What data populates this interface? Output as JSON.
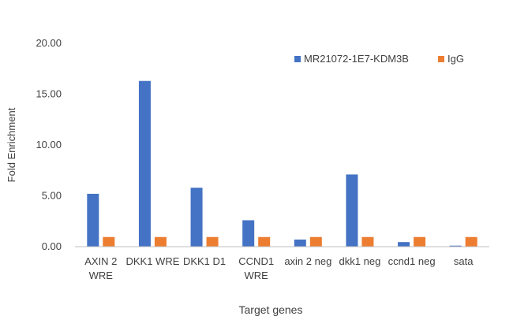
{
  "chart_data": {
    "type": "bar",
    "ylabel": "Fold Enrichment",
    "xlabel": "Target genes",
    "ylim": [
      0,
      20
    ],
    "yticks": [
      "0.00",
      "5.00",
      "10.00",
      "15.00",
      "20.00"
    ],
    "categories": [
      [
        "AXIN 2",
        "WRE"
      ],
      [
        "DKK1 WRE"
      ],
      [
        "DKK1 D1"
      ],
      [
        "CCND1",
        "WRE"
      ],
      [
        "axin 2 neg"
      ],
      [
        "dkk1 neg"
      ],
      [
        "ccnd1 neg"
      ],
      [
        "sata"
      ]
    ],
    "series": [
      {
        "name": "MR21072-1E7-KDM3B",
        "color": "#4472C4",
        "values": [
          5.2,
          16.3,
          5.8,
          2.6,
          0.7,
          7.1,
          0.45,
          0.1
        ]
      },
      {
        "name": "IgG",
        "color": "#ED7D31",
        "values": [
          0.95,
          0.95,
          0.95,
          0.95,
          0.95,
          0.95,
          0.95,
          0.95
        ]
      }
    ],
    "grid": false,
    "legend_position": "top-right"
  }
}
